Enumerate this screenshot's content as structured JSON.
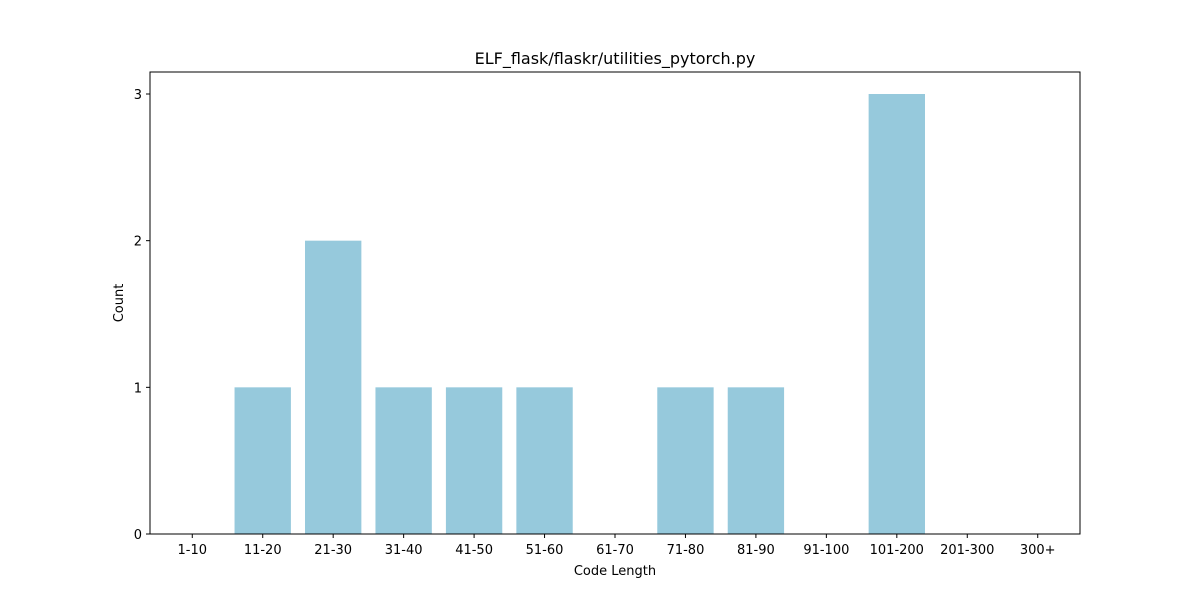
{
  "chart_data": {
    "type": "bar",
    "title": "ELF_flask/flaskr/utilities_pytorch.py",
    "xlabel": "Code Length",
    "ylabel": "Count",
    "categories": [
      "1-10",
      "11-20",
      "21-30",
      "31-40",
      "41-50",
      "51-60",
      "61-70",
      "71-80",
      "81-90",
      "91-100",
      "101-200",
      "201-300",
      "300+"
    ],
    "values": [
      0,
      1,
      2,
      1,
      1,
      1,
      0,
      1,
      1,
      0,
      3,
      0,
      0
    ],
    "ylim": [
      0,
      3.15
    ],
    "yticks": [
      0,
      1,
      2,
      3
    ],
    "grid": false,
    "legend": "none",
    "bar_color": "#96c9dc"
  }
}
